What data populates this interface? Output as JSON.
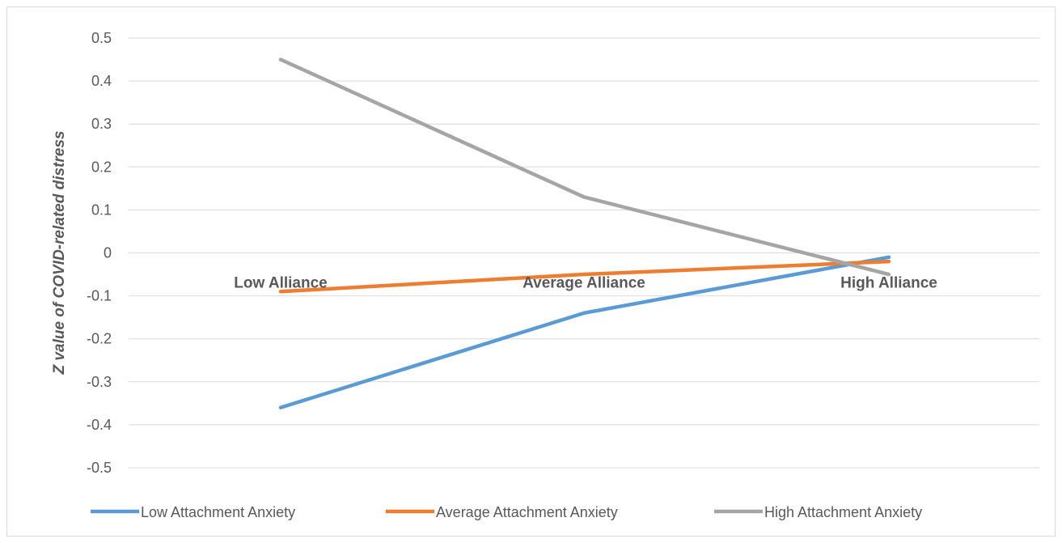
{
  "chart_data": {
    "type": "line",
    "categories": [
      "Low Alliance",
      "Average Alliance",
      "High Alliance"
    ],
    "ylabel": "Z value of COVID-related distress",
    "ylim": [
      -0.5,
      0.5
    ],
    "yticks": [
      0.5,
      0.4,
      0.3,
      0.2,
      0.1,
      0,
      -0.1,
      -0.2,
      -0.3,
      -0.4,
      -0.5
    ],
    "ytick_labels": [
      "0.5",
      "0.4",
      "0.3",
      "0.2",
      "0.1",
      "0",
      "-0.1",
      "-0.2",
      "-0.3",
      "-0.4",
      "-0.5"
    ],
    "grid": true,
    "legend_position": "bottom",
    "series": [
      {
        "name": "Low Attachment Anxiety",
        "color": "#5b9bd5",
        "values": [
          -0.36,
          -0.14,
          -0.01
        ]
      },
      {
        "name": "Average Attachment Anxiety",
        "color": "#ed7d31",
        "values": [
          -0.09,
          -0.05,
          -0.02
        ]
      },
      {
        "name": "High Attachment Anxiety",
        "color": "#a5a5a5",
        "values": [
          0.45,
          0.13,
          -0.05
        ]
      }
    ]
  }
}
